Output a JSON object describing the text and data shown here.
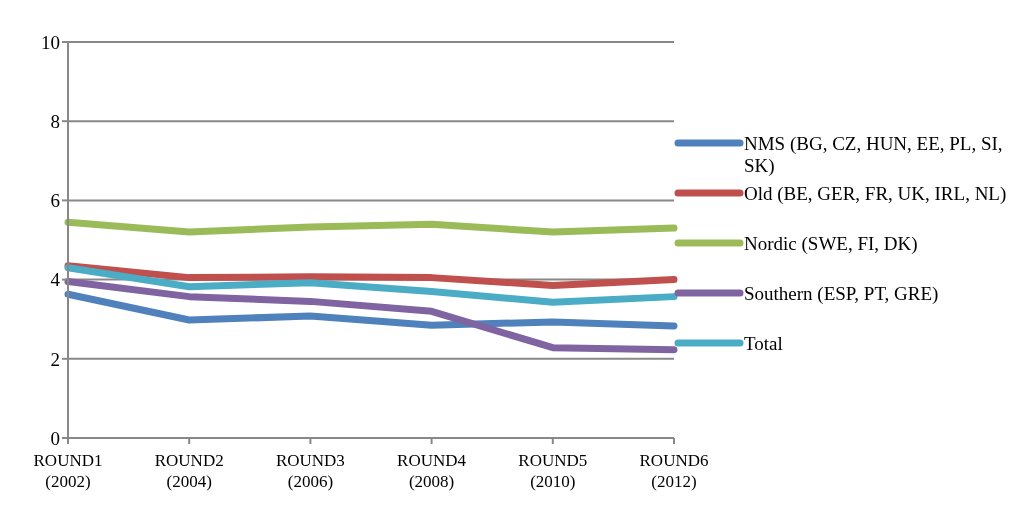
{
  "chart_data": {
    "type": "line",
    "categories": [
      "ROUND1 (2002)",
      "ROUND2 (2004)",
      "ROUND3 (2006)",
      "ROUND4 (2008)",
      "ROUND5 (2010)",
      "ROUND6 (2012)"
    ],
    "series": [
      {
        "name": "NMS (BG, CZ, HUN, EE, PL, SI, SK)",
        "color": "#4f81bd",
        "values": [
          3.63,
          2.98,
          3.08,
          2.85,
          2.93,
          2.83
        ]
      },
      {
        "name": "Old (BE, GER, FR, UK, IRL, NL)",
        "color": "#c0504d",
        "values": [
          4.35,
          4.05,
          4.07,
          4.05,
          3.85,
          4.0
        ]
      },
      {
        "name": "Nordic (SWE, FI, DK)",
        "color": "#9bbb59",
        "values": [
          5.45,
          5.2,
          5.33,
          5.4,
          5.2,
          5.3
        ]
      },
      {
        "name": "Southern (ESP, PT, GRE)",
        "color": "#8064a2",
        "values": [
          3.95,
          3.57,
          3.45,
          3.2,
          2.28,
          2.23
        ]
      },
      {
        "name": "Total",
        "color": "#4bacc6",
        "values": [
          4.3,
          3.82,
          3.92,
          3.7,
          3.43,
          3.57
        ]
      }
    ],
    "ylim": [
      0,
      10
    ],
    "yticks": [
      0,
      2,
      4,
      6,
      8,
      10
    ],
    "grid": "y",
    "legend": "right",
    "marker": "none",
    "line_style": "solid"
  }
}
